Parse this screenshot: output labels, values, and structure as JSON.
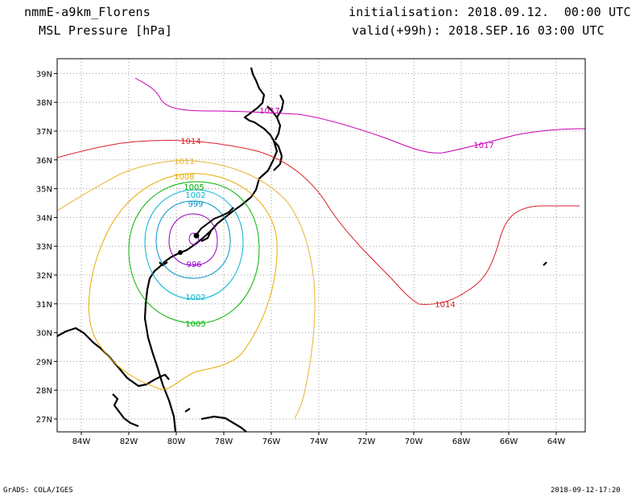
{
  "header": {
    "model": "nmmE-a9km_Florens",
    "field": "MSL Pressure [hPa]",
    "init": "initialisation: 2018.09.12.  00:00 UTC",
    "valid": "valid(+99h): 2018.SEP.16 03:00 UTC"
  },
  "footer": {
    "left": "GrADS: COLA/IGES",
    "right": "2018-09-12-17:20"
  },
  "axes": {
    "lon_labels": [
      "84W",
      "82W",
      "80W",
      "78W",
      "76W",
      "74W",
      "72W",
      "70W",
      "68W",
      "66W",
      "64W"
    ],
    "lat_labels": [
      "27N",
      "28N",
      "29N",
      "30N",
      "31N",
      "32N",
      "33N",
      "34N",
      "35N",
      "36N",
      "37N",
      "38N",
      "39N"
    ]
  },
  "contours": {
    "c996": "996",
    "c999": "999",
    "c1002a": "1002",
    "c1002b": "1002",
    "c1005a": "1005",
    "c1005b": "1005",
    "c1008": "1008",
    "c1011": "1011",
    "c1014a": "1014",
    "c1014b": "1014",
    "c1017a": "1017",
    "c1017b": "1017"
  },
  "colors": {
    "c996": "#9600c8",
    "c999": "#0096c8",
    "c1002": "#00b4d2",
    "c1005": "#00b400",
    "c1008": "#e6aa00",
    "c1011": "#e6b432",
    "c1014": "#dc1e28",
    "c1017": "#c800b4",
    "coast": "#000000",
    "grid": "#999999"
  }
}
